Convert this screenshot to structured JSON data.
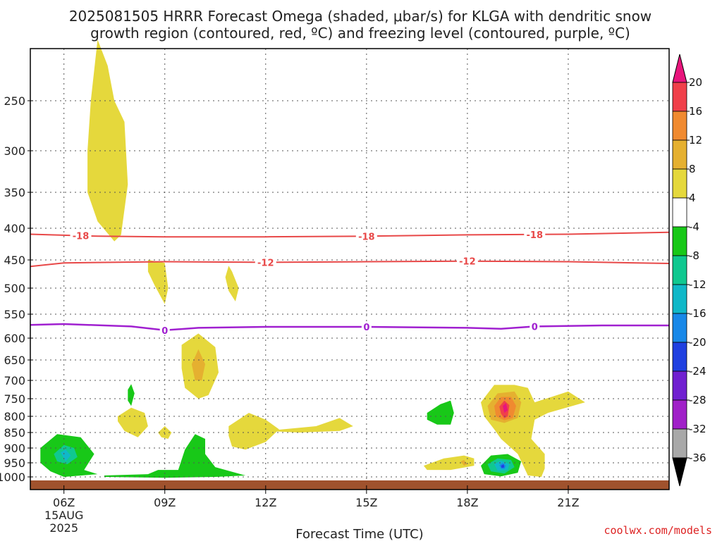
{
  "chart_data": {
    "type": "heatmap",
    "title_line1": "2025081505 HRRR Forecast Omega (shaded, μbar/s) for KLGA with dendritic snow",
    "title_line2": "growth region (contoured, red, ºC) and freezing level (contoured, purple, ºC)",
    "xlabel": "Forecast Time (UTC)",
    "ylabel": "",
    "credit": "coolwx.com/models",
    "x_range_hours": [
      5,
      24
    ],
    "y_range_mb": [
      1000,
      200
    ],
    "x_ticks": [
      {
        "hour": 6,
        "label": "06Z",
        "sub1": "15AUG",
        "sub2": "2025"
      },
      {
        "hour": 9,
        "label": "09Z"
      },
      {
        "hour": 12,
        "label": "12Z"
      },
      {
        "hour": 15,
        "label": "15Z"
      },
      {
        "hour": 18,
        "label": "18Z"
      },
      {
        "hour": 21,
        "label": "21Z"
      }
    ],
    "y_ticks": [
      250,
      300,
      350,
      400,
      450,
      500,
      550,
      600,
      650,
      700,
      750,
      800,
      850,
      900,
      950,
      1000
    ],
    "grid": true,
    "colorbar": {
      "position": "right",
      "top_color": "#e8157c",
      "bottom_color": "#000000",
      "bins": [
        {
          "color": "#f0404a"
        },
        {
          "color": "#f08a30"
        },
        {
          "color": "#e5b030"
        },
        {
          "color": "#e5d83c"
        },
        {
          "color": "#ffffff"
        },
        {
          "color": "#18c818"
        },
        {
          "color": "#10c890"
        },
        {
          "color": "#10b8c8"
        },
        {
          "color": "#1888e8"
        },
        {
          "color": "#2040e0"
        },
        {
          "color": "#7020d0"
        },
        {
          "color": "#a020c8"
        },
        {
          "color": "#a8a8a8"
        }
      ],
      "labels": [
        "20",
        "16",
        "12",
        "8",
        "4",
        "-4",
        "-8",
        "-12",
        "-16",
        "-20",
        "-24",
        "-28",
        "-32",
        "-36"
      ]
    },
    "contours": {
      "dendritic_color": "#e84848",
      "freezing_color": "#a020d0",
      "lines": [
        {
          "level_label": "-18",
          "color_key": "red",
          "points": [
            [
              5,
              409
            ],
            [
              7,
              412
            ],
            [
              9,
              413
            ],
            [
              12,
              413
            ],
            [
              15,
              412
            ],
            [
              18,
              410
            ],
            [
              21,
              409
            ],
            [
              24,
              406
            ]
          ],
          "labels_at": [
            6.5,
            15.0,
            20.0
          ]
        },
        {
          "level_label": "-12",
          "color_key": "red",
          "points": [
            [
              5,
              461
            ],
            [
              6,
              455
            ],
            [
              9,
              453
            ],
            [
              12,
              454
            ],
            [
              15,
              453
            ],
            [
              18,
              452
            ],
            [
              21,
              453
            ],
            [
              24,
              456
            ]
          ],
          "labels_at": [
            12.0,
            18.0
          ]
        },
        {
          "level_label": "0",
          "color_key": "purple",
          "points": [
            [
              5,
              572
            ],
            [
              6,
              570
            ],
            [
              8,
              575
            ],
            [
              9,
              583
            ],
            [
              10,
              578
            ],
            [
              12,
              576
            ],
            [
              15,
              576
            ],
            [
              18,
              578
            ],
            [
              19,
              580
            ],
            [
              20,
              575
            ],
            [
              22,
              573
            ],
            [
              24,
              573
            ]
          ],
          "labels_at": [
            9.0,
            15.0,
            20.0
          ]
        }
      ]
    },
    "omega_regions": [
      {
        "color": "#e5d83c",
        "points": [
          [
            6.8,
            250
          ],
          [
            7.0,
            200
          ],
          [
            7.3,
            220
          ],
          [
            7.5,
            250
          ],
          [
            7.8,
            270
          ],
          [
            7.9,
            340
          ],
          [
            7.7,
            410
          ],
          [
            7.5,
            420
          ],
          [
            7.0,
            390
          ],
          [
            6.7,
            350
          ],
          [
            6.7,
            300
          ]
        ]
      },
      {
        "color": "#e5d83c",
        "points": [
          [
            8.5,
            450
          ],
          [
            9.0,
            455
          ],
          [
            9.1,
            500
          ],
          [
            9.0,
            530
          ],
          [
            8.7,
            495
          ],
          [
            8.5,
            470
          ]
        ]
      },
      {
        "color": "#e5d83c",
        "points": [
          [
            10.9,
            460
          ],
          [
            11.0,
            470
          ],
          [
            11.2,
            500
          ],
          [
            11.1,
            525
          ],
          [
            10.9,
            505
          ],
          [
            10.8,
            480
          ]
        ]
      },
      {
        "color": "#e5d83c",
        "points": [
          [
            9.5,
            615
          ],
          [
            10.0,
            590
          ],
          [
            10.5,
            620
          ],
          [
            10.6,
            680
          ],
          [
            10.3,
            740
          ],
          [
            10.0,
            750
          ],
          [
            9.6,
            720
          ],
          [
            9.5,
            670
          ]
        ]
      },
      {
        "color": "#e5b030",
        "points": [
          [
            10.0,
            625
          ],
          [
            10.2,
            660
          ],
          [
            10.1,
            700
          ],
          [
            9.9,
            700
          ],
          [
            9.8,
            660
          ]
        ]
      },
      {
        "color": "#e5d83c",
        "points": [
          [
            7.6,
            800
          ],
          [
            8.0,
            775
          ],
          [
            8.4,
            790
          ],
          [
            8.5,
            830
          ],
          [
            8.2,
            865
          ],
          [
            7.8,
            845
          ],
          [
            7.6,
            815
          ]
        ]
      },
      {
        "color": "#18c818",
        "points": [
          [
            7.9,
            725
          ],
          [
            8.0,
            710
          ],
          [
            8.1,
            735
          ],
          [
            8.0,
            770
          ],
          [
            7.9,
            755
          ]
        ]
      },
      {
        "color": "#e5d83c",
        "points": [
          [
            8.8,
            850
          ],
          [
            9.0,
            830
          ],
          [
            9.2,
            850
          ],
          [
            9.1,
            870
          ],
          [
            8.9,
            865
          ]
        ]
      },
      {
        "color": "#e5d83c",
        "points": [
          [
            10.9,
            830
          ],
          [
            11.5,
            790
          ],
          [
            12.0,
            810
          ],
          [
            12.4,
            840
          ],
          [
            12.0,
            880
          ],
          [
            11.4,
            905
          ],
          [
            11.0,
            895
          ],
          [
            10.9,
            860
          ]
        ]
      },
      {
        "color": "#e5d83c",
        "points": [
          [
            12.0,
            845
          ],
          [
            13.5,
            830
          ],
          [
            14.2,
            805
          ],
          [
            14.6,
            830
          ],
          [
            14.2,
            845
          ],
          [
            13.0,
            850
          ]
        ]
      },
      {
        "color": "#18c818",
        "points": [
          [
            5.3,
            900
          ],
          [
            5.8,
            855
          ],
          [
            6.5,
            865
          ],
          [
            6.9,
            920
          ],
          [
            6.6,
            975
          ],
          [
            7.0,
            990
          ],
          [
            6.0,
            1000
          ],
          [
            5.6,
            980
          ],
          [
            5.3,
            950
          ]
        ]
      },
      {
        "color": "#10c890",
        "points": [
          [
            5.7,
            920
          ],
          [
            6.0,
            890
          ],
          [
            6.3,
            900
          ],
          [
            6.4,
            930
          ],
          [
            6.1,
            955
          ],
          [
            5.8,
            945
          ]
        ]
      },
      {
        "color": "#10b8c8",
        "points": [
          [
            5.9,
            915
          ],
          [
            6.05,
            905
          ],
          [
            6.2,
            925
          ],
          [
            6.05,
            945
          ]
        ]
      },
      {
        "color": "#18c818",
        "points": [
          [
            7.2,
            995
          ],
          [
            8.5,
            990
          ],
          [
            8.8,
            975
          ],
          [
            9.4,
            975
          ],
          [
            9.6,
            905
          ],
          [
            9.9,
            855
          ],
          [
            10.2,
            870
          ],
          [
            10.2,
            920
          ],
          [
            10.5,
            965
          ],
          [
            11.4,
            995
          ],
          [
            10.5,
            1000
          ],
          [
            9.0,
            1003
          ],
          [
            7.2,
            1000
          ]
        ]
      },
      {
        "color": "#18c818",
        "points": [
          [
            16.8,
            790
          ],
          [
            17.2,
            765
          ],
          [
            17.5,
            755
          ],
          [
            17.6,
            790
          ],
          [
            17.5,
            825
          ],
          [
            17.1,
            825
          ],
          [
            16.8,
            810
          ]
        ]
      },
      {
        "color": "#e5d83c",
        "points": [
          [
            16.7,
            960
          ],
          [
            17.3,
            935
          ],
          [
            17.9,
            925
          ],
          [
            18.2,
            935
          ],
          [
            18.2,
            960
          ],
          [
            17.5,
            975
          ],
          [
            16.8,
            975
          ]
        ]
      },
      {
        "color": "#e5b030",
        "points": [
          [
            17.8,
            945
          ],
          [
            17.9,
            940
          ],
          [
            18.0,
            955
          ],
          [
            17.9,
            960
          ]
        ]
      },
      {
        "color": "#e5d83c",
        "points": [
          [
            18.4,
            760
          ],
          [
            18.8,
            712
          ],
          [
            19.4,
            712
          ],
          [
            19.8,
            720
          ],
          [
            20.0,
            760
          ],
          [
            20.5,
            745
          ],
          [
            21.0,
            730
          ],
          [
            21.5,
            760
          ],
          [
            20.4,
            790
          ],
          [
            20.0,
            810
          ],
          [
            19.9,
            870
          ],
          [
            20.3,
            920
          ],
          [
            20.3,
            970
          ],
          [
            20.2,
            1000
          ],
          [
            19.8,
            995
          ],
          [
            19.5,
            920
          ],
          [
            19.0,
            870
          ],
          [
            18.8,
            840
          ],
          [
            18.5,
            800
          ]
        ]
      },
      {
        "color": "#e5b030",
        "points": [
          [
            18.6,
            770
          ],
          [
            18.9,
            735
          ],
          [
            19.4,
            730
          ],
          [
            19.6,
            760
          ],
          [
            19.5,
            805
          ],
          [
            19.1,
            820
          ],
          [
            18.7,
            810
          ]
        ]
      },
      {
        "color": "#f08a30",
        "points": [
          [
            18.8,
            770
          ],
          [
            19.0,
            745
          ],
          [
            19.3,
            745
          ],
          [
            19.45,
            770
          ],
          [
            19.35,
            805
          ],
          [
            19.1,
            812
          ],
          [
            18.85,
            800
          ]
        ]
      },
      {
        "color": "#f0404a",
        "points": [
          [
            18.95,
            772
          ],
          [
            19.1,
            755
          ],
          [
            19.25,
            768
          ],
          [
            19.2,
            800
          ],
          [
            19.1,
            806
          ],
          [
            19.0,
            792
          ]
        ]
      },
      {
        "color": "#e8157c",
        "points": [
          [
            19.05,
            770
          ],
          [
            19.15,
            762
          ],
          [
            19.2,
            782
          ],
          [
            19.1,
            790
          ]
        ]
      },
      {
        "color": "#18c818",
        "points": [
          [
            18.4,
            960
          ],
          [
            18.7,
            925
          ],
          [
            19.2,
            920
          ],
          [
            19.6,
            945
          ],
          [
            19.5,
            985
          ],
          [
            19.0,
            998
          ],
          [
            18.5,
            990
          ]
        ]
      },
      {
        "color": "#10c890",
        "points": [
          [
            18.6,
            955
          ],
          [
            18.9,
            935
          ],
          [
            19.3,
            940
          ],
          [
            19.4,
            965
          ],
          [
            19.1,
            988
          ],
          [
            18.7,
            980
          ]
        ]
      },
      {
        "color": "#10b8c8",
        "points": [
          [
            18.8,
            955
          ],
          [
            19.0,
            942
          ],
          [
            19.25,
            955
          ],
          [
            19.2,
            975
          ],
          [
            18.9,
            978
          ]
        ]
      },
      {
        "color": "#1888e8",
        "points": [
          [
            18.95,
            958
          ],
          [
            19.05,
            950
          ],
          [
            19.15,
            960
          ],
          [
            19.1,
            972
          ],
          [
            19.0,
            970
          ]
        ]
      },
      {
        "color": "#2040e0",
        "points": [
          [
            19.0,
            960
          ],
          [
            19.08,
            955
          ],
          [
            19.1,
            966
          ],
          [
            19.02,
            968
          ]
        ]
      }
    ],
    "ground_color": "#a0522d"
  }
}
